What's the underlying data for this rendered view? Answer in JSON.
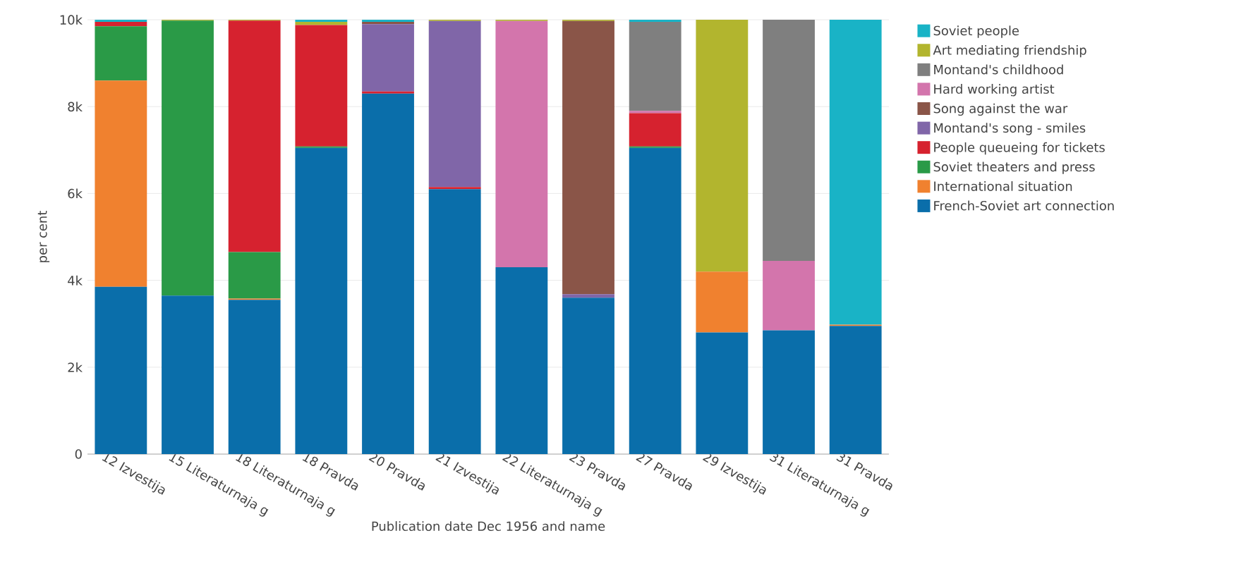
{
  "chart_data": {
    "type": "bar",
    "stacked": true,
    "xlabel": "Publication date Dec 1956 and name",
    "ylabel": "per cent",
    "categories": [
      "12 Izvestija",
      "15 Literaturnaja g",
      "18 Literaturnaja g",
      "18 Pravda",
      "20 Pravda",
      "21 Izvestija",
      "22 Literaturnaja g",
      "23 Pravda",
      "27 Pravda",
      "29 Izvestija",
      "31 Literaturnaja g",
      "31 Pravda"
    ],
    "ylim": [
      0,
      10000
    ],
    "yticks": [
      0,
      {
        "value": 2000,
        "label": "2k"
      },
      {
        "value": 4000,
        "label": "4k"
      },
      {
        "value": 6000,
        "label": "6k"
      },
      {
        "value": 8000,
        "label": "8k"
      },
      {
        "value": 10000,
        "label": "10k"
      }
    ],
    "grid": "y",
    "legend": "top right",
    "series": [
      {
        "name": "French-Soviet art connection",
        "color": "#0a6eaa",
        "values": [
          3850,
          3650,
          3550,
          7050,
          8300,
          6100,
          4300,
          3600,
          7050,
          2800,
          2850,
          2950
        ]
      },
      {
        "name": "International situation",
        "color": "#f0812f",
        "values": [
          4750,
          null,
          30,
          null,
          null,
          null,
          null,
          null,
          null,
          1400,
          null,
          30
        ]
      },
      {
        "name": "Soviet theaters and press",
        "color": "#2a9a47",
        "values": [
          1250,
          6330,
          1070,
          30,
          null,
          null,
          null,
          null,
          30,
          null,
          null,
          null
        ]
      },
      {
        "name": "People queueing for tickets",
        "color": "#d6222f",
        "values": [
          100,
          null,
          5330,
          2800,
          50,
          50,
          null,
          null,
          770,
          null,
          null,
          null
        ]
      },
      {
        "name": "Montand's song - smiles",
        "color": "#8066a8",
        "values": [
          null,
          null,
          null,
          null,
          1550,
          3820,
          null,
          80,
          null,
          null,
          null,
          null
        ]
      },
      {
        "name": "Song against the war",
        "color": "#8a5548",
        "values": [
          null,
          null,
          null,
          null,
          50,
          null,
          null,
          6290,
          null,
          null,
          null,
          null
        ]
      },
      {
        "name": "Hard working artist",
        "color": "#d375ac",
        "values": [
          null,
          null,
          null,
          null,
          null,
          null,
          5670,
          null,
          50,
          null,
          1600,
          null
        ]
      },
      {
        "name": "Montand's childhood",
        "color": "#7f7f7f",
        "values": [
          null,
          null,
          null,
          null,
          null,
          null,
          null,
          null,
          2050,
          null,
          5550,
          null
        ]
      },
      {
        "name": "Art mediating friendship",
        "color": "#b2b52e",
        "values": [
          null,
          20,
          20,
          70,
          null,
          30,
          30,
          30,
          null,
          5800,
          null,
          null
        ]
      },
      {
        "name": "Soviet people",
        "color": "#19b3c6",
        "values": [
          50,
          null,
          null,
          50,
          50,
          null,
          null,
          null,
          50,
          null,
          null,
          7020
        ]
      }
    ]
  }
}
